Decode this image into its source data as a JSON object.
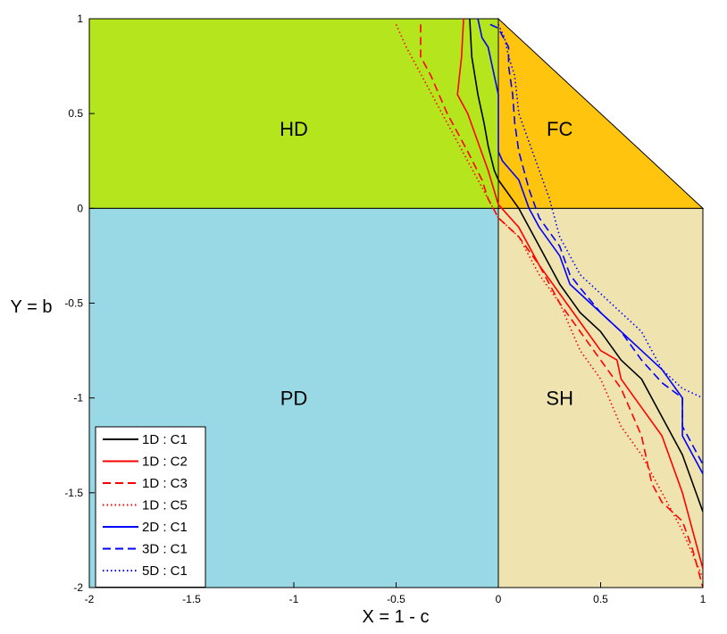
{
  "chart_data": {
    "type": "line",
    "xlabel": "X = 1 - c",
    "ylabel": "Y = b",
    "xlim": [
      -2,
      1
    ],
    "ylim": [
      -2,
      1
    ],
    "grid": false,
    "legend_position": "bottom-left",
    "xticks": [
      -2,
      -1.5,
      -1,
      -0.5,
      0,
      0.5,
      1
    ],
    "xtick_labels": [
      "-2",
      "-1.5",
      "-1",
      "-0.5",
      "0",
      "0.5",
      "1"
    ],
    "yticks": [
      1,
      0.5,
      0,
      -0.5,
      -1,
      -1.5,
      -2
    ],
    "ytick_labels": [
      "1",
      "0.5",
      "0",
      "-0.5",
      "-1",
      "-1.5",
      "-2"
    ],
    "regions": [
      {
        "label": "HD",
        "color": "#b5e51d",
        "polygon": [
          [
            -2,
            0
          ],
          [
            0,
            0
          ],
          [
            0,
            1
          ],
          [
            -2,
            1
          ]
        ],
        "label_at": [
          -1,
          0.42
        ]
      },
      {
        "label": "FC",
        "color": "#ffc40e",
        "polygon": [
          [
            0,
            0
          ],
          [
            1,
            0
          ],
          [
            0,
            1
          ]
        ],
        "label_at": [
          0.3,
          0.42
        ]
      },
      {
        "label": "PD",
        "color": "#99d9e6",
        "polygon": [
          [
            -2,
            -2
          ],
          [
            0,
            -2
          ],
          [
            0,
            0
          ],
          [
            -2,
            0
          ]
        ],
        "label_at": [
          -1,
          -1
        ]
      },
      {
        "label": "SH",
        "color": "#efe4b0",
        "polygon": [
          [
            0,
            -2
          ],
          [
            1,
            -2
          ],
          [
            1,
            0
          ],
          [
            0,
            0
          ]
        ],
        "label_at": [
          0.3,
          -1
        ]
      }
    ],
    "series": [
      {
        "name": "1D : C1",
        "color": "#000000",
        "dash": "solid",
        "points": [
          [
            -0.14,
            1
          ],
          [
            -0.13,
            0.8
          ],
          [
            -0.1,
            0.6
          ],
          [
            -0.07,
            0.45
          ],
          [
            -0.05,
            0.33
          ],
          [
            -0.02,
            0.2
          ],
          [
            0,
            0.15
          ],
          [
            0.1,
            0
          ],
          [
            0.2,
            -0.2
          ],
          [
            0.3,
            -0.4
          ],
          [
            0.4,
            -0.55
          ],
          [
            0.5,
            -0.65
          ],
          [
            0.6,
            -0.8
          ],
          [
            0.7,
            -0.9
          ],
          [
            0.8,
            -1.1
          ],
          [
            0.9,
            -1.3
          ],
          [
            1,
            -1.6
          ]
        ]
      },
      {
        "name": "1D : C2",
        "color": "#ff0000",
        "dash": "solid",
        "points": [
          [
            -0.17,
            1
          ],
          [
            -0.18,
            0.8
          ],
          [
            -0.2,
            0.6
          ],
          [
            -0.15,
            0.5
          ],
          [
            -0.1,
            0.35
          ],
          [
            -0.05,
            0.2
          ],
          [
            0,
            0.02
          ],
          [
            0.1,
            -0.1
          ],
          [
            0.2,
            -0.3
          ],
          [
            0.3,
            -0.45
          ],
          [
            0.4,
            -0.6
          ],
          [
            0.5,
            -0.75
          ],
          [
            0.58,
            -0.8
          ],
          [
            0.6,
            -0.9
          ],
          [
            0.7,
            -1.05
          ],
          [
            0.8,
            -1.2
          ],
          [
            0.9,
            -1.5
          ],
          [
            1,
            -1.9
          ]
        ]
      },
      {
        "name": "1D : C3",
        "color": "#ff0000",
        "dash": "dashed",
        "points": [
          [
            -0.38,
            0.97
          ],
          [
            -0.38,
            0.8
          ],
          [
            -0.33,
            0.7
          ],
          [
            -0.25,
            0.5
          ],
          [
            -0.15,
            0.3
          ],
          [
            -0.08,
            0.15
          ],
          [
            -0.05,
            0.05
          ],
          [
            0,
            -0.05
          ],
          [
            0.1,
            -0.15
          ],
          [
            0.2,
            -0.3
          ],
          [
            0.3,
            -0.5
          ],
          [
            0.4,
            -0.65
          ],
          [
            0.5,
            -0.8
          ],
          [
            0.6,
            -0.95
          ],
          [
            0.7,
            -1.2
          ],
          [
            0.75,
            -1.45
          ],
          [
            0.8,
            -1.55
          ],
          [
            0.9,
            -1.65
          ],
          [
            0.95,
            -1.8
          ],
          [
            1,
            -2
          ]
        ]
      },
      {
        "name": "1D : C5",
        "color": "#ff0000",
        "dash": "dotted",
        "points": [
          [
            -0.5,
            0.97
          ],
          [
            -0.45,
            0.85
          ],
          [
            -0.4,
            0.75
          ],
          [
            -0.3,
            0.55
          ],
          [
            -0.2,
            0.35
          ],
          [
            -0.1,
            0.15
          ],
          [
            -0.05,
            0.05
          ],
          [
            0,
            -0.05
          ],
          [
            0.1,
            -0.15
          ],
          [
            0.2,
            -0.35
          ],
          [
            0.3,
            -0.5
          ],
          [
            0.4,
            -0.75
          ],
          [
            0.5,
            -0.9
          ],
          [
            0.6,
            -1.15
          ],
          [
            0.7,
            -1.3
          ],
          [
            0.8,
            -1.5
          ],
          [
            0.9,
            -1.7
          ],
          [
            1,
            -1.95
          ]
        ]
      },
      {
        "name": "2D : C1",
        "color": "#0000ff",
        "dash": "solid",
        "points": [
          [
            -0.1,
            1
          ],
          [
            -0.08,
            0.9
          ],
          [
            -0.05,
            0.85
          ],
          [
            -0.03,
            0.75
          ],
          [
            0,
            0.6
          ],
          [
            0,
            0.3
          ],
          [
            0.02,
            0.25
          ],
          [
            0.1,
            0.15
          ],
          [
            0.15,
            0
          ],
          [
            0.2,
            -0.1
          ],
          [
            0.3,
            -0.25
          ],
          [
            0.35,
            -0.4
          ],
          [
            0.4,
            -0.45
          ],
          [
            0.5,
            -0.55
          ],
          [
            0.6,
            -0.65
          ],
          [
            0.7,
            -0.75
          ],
          [
            0.8,
            -0.85
          ],
          [
            0.9,
            -1
          ],
          [
            0.9,
            -1.1
          ],
          [
            0.9,
            -1.2
          ],
          [
            1,
            -1.4
          ]
        ]
      },
      {
        "name": "3D : C1",
        "color": "#0000ff",
        "dash": "dashed",
        "points": [
          [
            -0.04,
            0.97
          ],
          [
            0,
            0.95
          ],
          [
            0.05,
            0.85
          ],
          [
            0.05,
            0.75
          ],
          [
            0.07,
            0.6
          ],
          [
            0.08,
            0.45
          ],
          [
            0.1,
            0.3
          ],
          [
            0.15,
            0.1
          ],
          [
            0.2,
            -0.05
          ],
          [
            0.3,
            -0.2
          ],
          [
            0.35,
            -0.35
          ],
          [
            0.4,
            -0.42
          ],
          [
            0.5,
            -0.55
          ],
          [
            0.6,
            -0.65
          ],
          [
            0.7,
            -0.8
          ],
          [
            0.8,
            -0.92
          ],
          [
            0.9,
            -1
          ],
          [
            0.9,
            -1.05
          ],
          [
            0.9,
            -1.15
          ],
          [
            1,
            -1.35
          ]
        ]
      },
      {
        "name": "5D : C1",
        "color": "#0000ff",
        "dash": "dotted",
        "points": [
          [
            0,
            0.97
          ],
          [
            0.03,
            0.9
          ],
          [
            0.05,
            0.8
          ],
          [
            0.08,
            0.7
          ],
          [
            0.1,
            0.5
          ],
          [
            0.15,
            0.35
          ],
          [
            0.2,
            0.2
          ],
          [
            0.25,
            0.05
          ],
          [
            0.3,
            -0.15
          ],
          [
            0.4,
            -0.35
          ],
          [
            0.5,
            -0.45
          ],
          [
            0.6,
            -0.55
          ],
          [
            0.7,
            -0.65
          ],
          [
            0.8,
            -0.85
          ],
          [
            0.9,
            -0.95
          ],
          [
            1,
            -1
          ]
        ]
      }
    ]
  }
}
